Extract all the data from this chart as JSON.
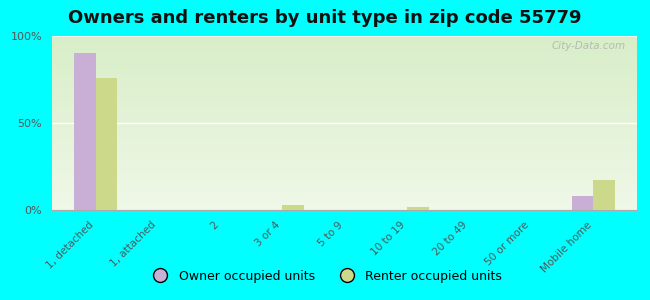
{
  "title": "Owners and renters by unit type in zip code 55779",
  "categories": [
    "1, detached",
    "1, attached",
    "2",
    "3 or 4",
    "5 to 9",
    "10 to 19",
    "20 to 49",
    "50 or more",
    "Mobile home"
  ],
  "owner_values": [
    90,
    0,
    0,
    0,
    0,
    0,
    0,
    0,
    8
  ],
  "renter_values": [
    76,
    0,
    0,
    3,
    0,
    2,
    0,
    0,
    17
  ],
  "owner_color": "#c9aed6",
  "renter_color": "#cdd98a",
  "background_color": "#00ffff",
  "plot_bg_top": "#d8eec8",
  "plot_bg_bottom": "#f0f8e8",
  "ylim": [
    0,
    100
  ],
  "yticks": [
    0,
    50,
    100
  ],
  "ytick_labels": [
    "0%",
    "50%",
    "100%"
  ],
  "bar_width": 0.35,
  "watermark": "City-Data.com",
  "legend_owner": "Owner occupied units",
  "legend_renter": "Renter occupied units",
  "title_fontsize": 13
}
